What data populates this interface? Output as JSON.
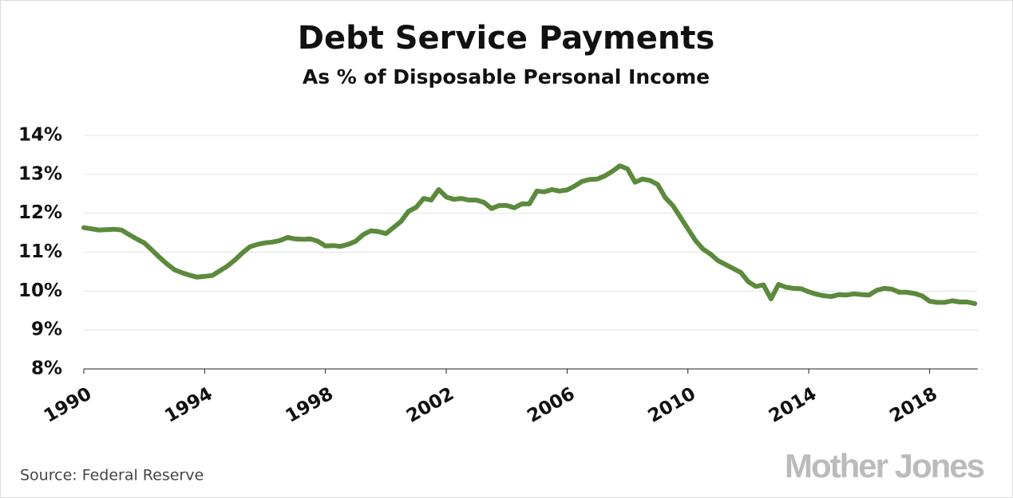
{
  "chart_data": {
    "type": "line",
    "title": "Debt Service Payments",
    "subtitle": "As % of Disposable Personal Income",
    "source": "Source: Federal Reserve",
    "logo": "Mother Jones",
    "color": "#5b8a3c",
    "grid": true,
    "xlim": [
      1990,
      2019.6
    ],
    "xticks": [
      1990,
      1994,
      1998,
      2002,
      2006,
      2010,
      2014,
      2018
    ],
    "ylim": [
      8,
      14
    ],
    "yticks": [
      {
        "value": 8,
        "label": "8%"
      },
      {
        "value": 9,
        "label": "9%"
      },
      {
        "value": 10,
        "label": "10%"
      },
      {
        "value": 11,
        "label": "11%"
      },
      {
        "value": 12,
        "label": "12%"
      },
      {
        "value": 13,
        "label": "13%"
      },
      {
        "value": 14,
        "label": "14%"
      }
    ],
    "x": [
      1990,
      1990.25,
      1990.5,
      1990.75,
      1991,
      1991.25,
      1991.5,
      1991.75,
      1992,
      1992.25,
      1992.5,
      1992.75,
      1993,
      1993.25,
      1993.5,
      1993.75,
      1994,
      1994.25,
      1994.5,
      1994.75,
      1995,
      1995.25,
      1995.5,
      1995.75,
      1996,
      1996.25,
      1996.5,
      1996.75,
      1997,
      1997.25,
      1997.5,
      1997.75,
      1998,
      1998.25,
      1998.5,
      1998.75,
      1999,
      1999.25,
      1999.5,
      1999.75,
      2000,
      2000.25,
      2000.5,
      2000.75,
      2001,
      2001.25,
      2001.5,
      2001.75,
      2002,
      2002.25,
      2002.5,
      2002.75,
      2003,
      2003.25,
      2003.5,
      2003.75,
      2004,
      2004.25,
      2004.5,
      2004.75,
      2005,
      2005.25,
      2005.5,
      2005.75,
      2006,
      2006.25,
      2006.5,
      2006.75,
      2007,
      2007.25,
      2007.5,
      2007.75,
      2008,
      2008.25,
      2008.5,
      2008.75,
      2009,
      2009.25,
      2009.5,
      2009.75,
      2010,
      2010.25,
      2010.5,
      2010.75,
      2011,
      2011.25,
      2011.5,
      2011.75,
      2012,
      2012.25,
      2012.5,
      2012.75,
      2013,
      2013.25,
      2013.5,
      2013.75,
      2014,
      2014.25,
      2014.5,
      2014.75,
      2015,
      2015.25,
      2015.5,
      2015.75,
      2016,
      2016.25,
      2016.5,
      2016.75,
      2017,
      2017.25,
      2017.5,
      2017.75,
      2018,
      2018.25,
      2018.5,
      2018.75,
      2019,
      2019.25,
      2019.5
    ],
    "values": [
      11.63,
      11.6,
      11.57,
      11.58,
      11.59,
      11.57,
      11.45,
      11.34,
      11.24,
      11.06,
      10.87,
      10.7,
      10.55,
      10.47,
      10.41,
      10.36,
      10.38,
      10.4,
      10.52,
      10.64,
      10.8,
      10.98,
      11.14,
      11.2,
      11.24,
      11.26,
      11.3,
      11.38,
      11.34,
      11.33,
      11.34,
      11.28,
      11.16,
      11.17,
      11.15,
      11.2,
      11.28,
      11.45,
      11.55,
      11.53,
      11.48,
      11.63,
      11.79,
      12.05,
      12.15,
      12.38,
      12.34,
      12.61,
      12.42,
      12.36,
      12.38,
      12.34,
      12.34,
      12.28,
      12.12,
      12.2,
      12.2,
      12.14,
      12.24,
      12.24,
      12.57,
      12.55,
      12.61,
      12.57,
      12.6,
      12.7,
      12.82,
      12.87,
      12.88,
      12.96,
      13.08,
      13.22,
      13.14,
      12.8,
      12.88,
      12.84,
      12.74,
      12.4,
      12.2,
      11.9,
      11.6,
      11.3,
      11.08,
      10.95,
      10.78,
      10.68,
      10.58,
      10.48,
      10.24,
      10.12,
      10.16,
      9.8,
      10.17,
      10.1,
      10.07,
      10.06,
      9.98,
      9.92,
      9.88,
      9.86,
      9.91,
      9.9,
      9.93,
      9.91,
      9.9,
      10.02,
      10.07,
      10.05,
      9.97,
      9.97,
      9.94,
      9.88,
      9.74,
      9.71,
      9.71,
      9.75,
      9.72,
      9.72,
      9.68
    ]
  }
}
